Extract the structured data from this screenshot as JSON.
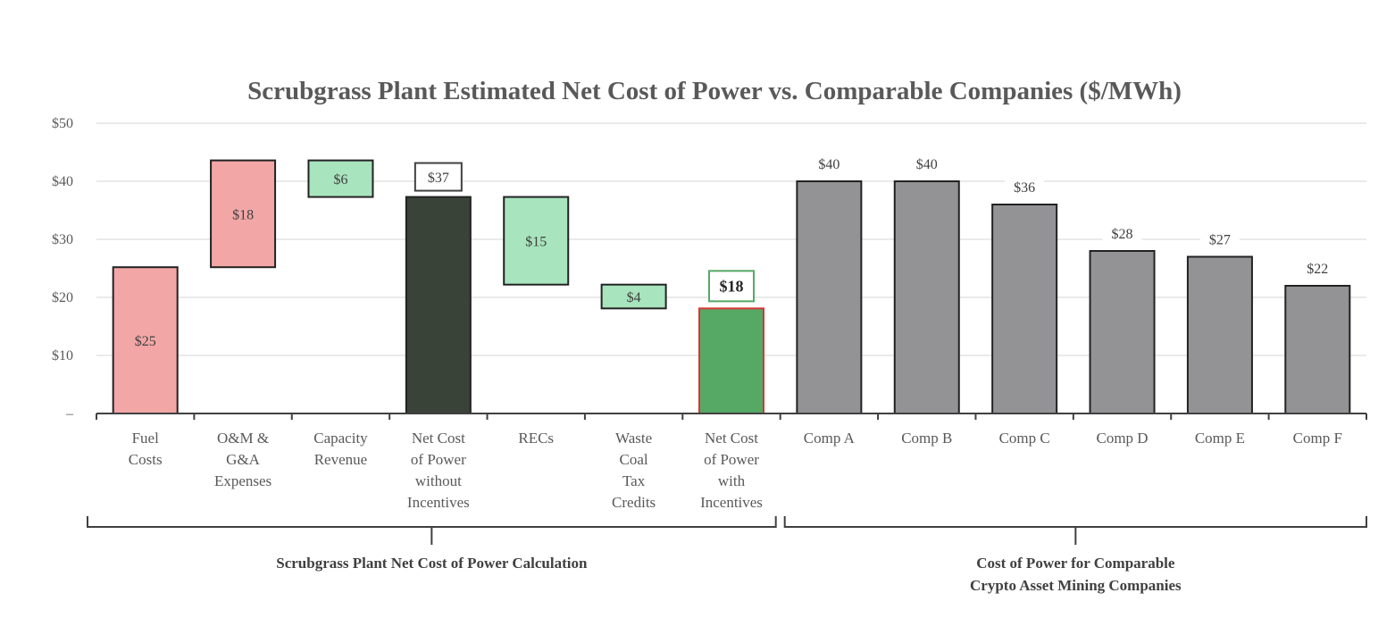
{
  "chart_data": {
    "type": "bar",
    "title": "Scrubgrass Plant Estimated Net Cost of Power vs. Comparable Companies ($/MWh)",
    "ylim": [
      0,
      50
    ],
    "yticks": [
      {
        "value": 0,
        "label": "–"
      },
      {
        "value": 10,
        "label": "$10"
      },
      {
        "value": 20,
        "label": "$20"
      },
      {
        "value": 30,
        "label": "$30"
      },
      {
        "value": 40,
        "label": "$40"
      },
      {
        "value": 50,
        "label": "$50"
      }
    ],
    "grid": true,
    "bars": [
      {
        "lines": [
          "Fuel",
          "Costs"
        ],
        "base": 0,
        "top": 25.2,
        "label": "$25",
        "label_pos": "inside",
        "fill": "#f2a6a6",
        "stroke": "#222222"
      },
      {
        "lines": [
          "O&M &",
          "G&A",
          "Expenses"
        ],
        "base": 25.2,
        "top": 43.6,
        "label": "$18",
        "label_pos": "inside",
        "fill": "#f2a6a6",
        "stroke": "#222222"
      },
      {
        "lines": [
          "Capacity",
          "Revenue"
        ],
        "base": 37.3,
        "top": 43.6,
        "label": "$6",
        "label_pos": "inside",
        "fill": "#a8e4bd",
        "stroke": "#222222"
      },
      {
        "lines": [
          "Net Cost",
          "of Power",
          "without",
          "Incentives"
        ],
        "base": 0,
        "top": 37.3,
        "label": "$37",
        "label_pos": "box-above",
        "fill": "#3a4338",
        "stroke": "#222222"
      },
      {
        "lines": [
          "RECs"
        ],
        "base": 22.2,
        "top": 37.3,
        "label": "$15",
        "label_pos": "inside",
        "fill": "#a8e4bd",
        "stroke": "#222222"
      },
      {
        "lines": [
          "Waste",
          "Coal",
          "Tax",
          "Credits"
        ],
        "base": 18.1,
        "top": 22.2,
        "label": "$4",
        "label_pos": "inside",
        "fill": "#a8e4bd",
        "stroke": "#222222"
      },
      {
        "lines": [
          "Net Cost",
          "of Power",
          "with",
          "Incentives"
        ],
        "base": 0,
        "top": 18.1,
        "label": "$18",
        "label_pos": "box-above-bold",
        "fill": "#56a865",
        "stroke": "#d93636"
      },
      {
        "lines": [
          "Comp A"
        ],
        "base": 0,
        "top": 40,
        "label": "$40",
        "label_pos": "above",
        "fill": "#939396",
        "stroke": "#222222"
      },
      {
        "lines": [
          "Comp B"
        ],
        "base": 0,
        "top": 40,
        "label": "$40",
        "label_pos": "above",
        "fill": "#939396",
        "stroke": "#222222"
      },
      {
        "lines": [
          "Comp C"
        ],
        "base": 0,
        "top": 36,
        "label": "$36",
        "label_pos": "above",
        "fill": "#939396",
        "stroke": "#222222"
      },
      {
        "lines": [
          "Comp D"
        ],
        "base": 0,
        "top": 28,
        "label": "$28",
        "label_pos": "above",
        "fill": "#939396",
        "stroke": "#222222"
      },
      {
        "lines": [
          "Comp E"
        ],
        "base": 0,
        "top": 27,
        "label": "$27",
        "label_pos": "above",
        "fill": "#939396",
        "stroke": "#222222"
      },
      {
        "lines": [
          "Comp F"
        ],
        "base": 0,
        "top": 22,
        "label": "$22",
        "label_pos": "above",
        "fill": "#939396",
        "stroke": "#222222"
      }
    ],
    "groups": [
      {
        "lines": [
          "Scrubgrass Plant Net Cost of Power Calculation"
        ],
        "from": 0,
        "to": 6
      },
      {
        "lines": [
          "Cost of Power for Comparable",
          "Crypto Asset Mining Companies"
        ],
        "from": 7,
        "to": 12
      }
    ]
  }
}
